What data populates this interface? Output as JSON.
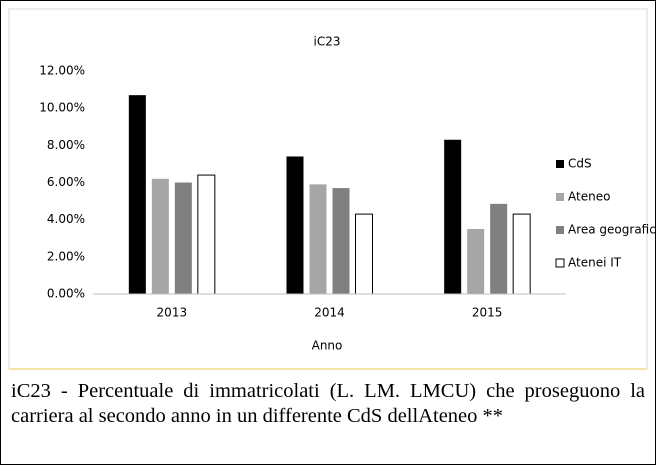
{
  "chart_data": {
    "type": "bar",
    "title": "iC23",
    "x_label": "Anno",
    "categories": [
      "2013",
      "2014",
      "2015"
    ],
    "series": [
      {
        "name": "CdS",
        "color": "#000000",
        "values": [
          10.7,
          7.4,
          8.3
        ]
      },
      {
        "name": "Ateneo",
        "color": "#a6a6a6",
        "values": [
          6.2,
          5.9,
          3.5
        ]
      },
      {
        "name": "Area geografica",
        "color": "#808080",
        "values": [
          6.0,
          5.7,
          4.85
        ]
      },
      {
        "name": "Atenei IT",
        "color": "#ffffff",
        "values": [
          6.4,
          4.3,
          4.3
        ]
      }
    ],
    "ylim": [
      0,
      12
    ],
    "yticks": [
      {
        "value": 0,
        "label": "0.00%"
      },
      {
        "value": 2,
        "label": "2.00%"
      },
      {
        "value": 4,
        "label": "4.00%"
      },
      {
        "value": 6,
        "label": "6.00%"
      },
      {
        "value": 8,
        "label": "8.00%"
      },
      {
        "value": 10,
        "label": "10.00%"
      },
      {
        "value": 12,
        "label": "12.00%"
      }
    ],
    "legend": "right"
  },
  "caption": "iC23 - Percentuale di immatricolati (L. LM. LMCU) che proseguono la carriera al secondo anno in un differente CdS dellAteneo **"
}
